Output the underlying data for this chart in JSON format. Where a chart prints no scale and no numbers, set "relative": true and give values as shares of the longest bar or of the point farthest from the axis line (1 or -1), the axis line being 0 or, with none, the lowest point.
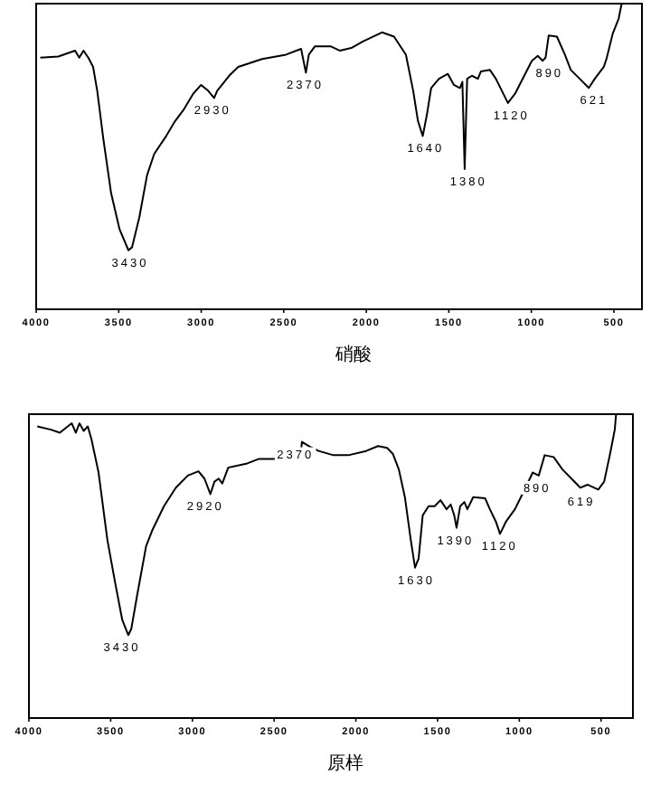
{
  "chart_data": [
    {
      "type": "line",
      "relative": true,
      "xlabel": "硝酸",
      "tick_labels": "x",
      "xlim": [
        4000,
        330
      ],
      "xticks": [
        4000,
        3500,
        3000,
        2500,
        2000,
        1500,
        1000,
        500
      ],
      "x": [
        3975,
        3866,
        3764,
        3739,
        3713,
        3684,
        3655,
        3630,
        3593,
        3546,
        3495,
        3441,
        3419,
        3375,
        3328,
        3285,
        3212,
        3158,
        3103,
        3049,
        3001,
        2958,
        2922,
        2903,
        2831,
        2776,
        2631,
        2486,
        2395,
        2366,
        2348,
        2312,
        2214,
        2159,
        2086,
        2021,
        1905,
        1832,
        1760,
        1716,
        1687,
        1658,
        1633,
        1607,
        1560,
        1506,
        1469,
        1433,
        1418,
        1404,
        1389,
        1360,
        1324,
        1306,
        1251,
        1215,
        1142,
        1099,
        1062,
        997,
        961,
        932,
        914,
        895,
        845,
        797,
        761,
        707,
        652,
        616,
        561,
        543,
        507,
        471,
        453
      ],
      "series": [
        {
          "color": "#000000",
          "values": [
            0.823,
            0.827,
            0.846,
            0.823,
            0.846,
            0.823,
            0.793,
            0.715,
            0.557,
            0.38,
            0.262,
            0.193,
            0.203,
            0.301,
            0.439,
            0.508,
            0.567,
            0.616,
            0.656,
            0.705,
            0.734,
            0.715,
            0.691,
            0.715,
            0.764,
            0.793,
            0.819,
            0.833,
            0.852,
            0.774,
            0.833,
            0.86,
            0.86,
            0.846,
            0.856,
            0.876,
            0.906,
            0.892,
            0.833,
            0.715,
            0.616,
            0.567,
            0.636,
            0.724,
            0.754,
            0.77,
            0.734,
            0.724,
            0.744,
            0.459,
            0.754,
            0.764,
            0.754,
            0.778,
            0.783,
            0.754,
            0.675,
            0.705,
            0.744,
            0.813,
            0.829,
            0.813,
            0.823,
            0.896,
            0.892,
            0.833,
            0.783,
            0.754,
            0.724,
            0.754,
            0.793,
            0.823,
            0.902,
            0.951,
            1.0
          ]
        }
      ],
      "annotations": [
        {
          "text": "3430",
          "x": 3430,
          "y": 0.193
        },
        {
          "text": "2930",
          "x": 2930,
          "y": 0.691
        },
        {
          "text": "2370",
          "x": 2370,
          "y": 0.774
        },
        {
          "text": "1640",
          "x": 1640,
          "y": 0.567
        },
        {
          "text": "1380",
          "x": 1380,
          "y": 0.459
        },
        {
          "text": "1120",
          "x": 1120,
          "y": 0.675
        },
        {
          "text": "890",
          "x": 890,
          "y": 0.813
        },
        {
          "text": "621",
          "x": 621,
          "y": 0.724
        }
      ]
    },
    {
      "type": "line",
      "relative": true,
      "xlabel": "原样",
      "tick_labels": "x",
      "xlim": [
        4000,
        305
      ],
      "xticks": [
        4000,
        3500,
        3000,
        2500,
        2000,
        1500,
        1000,
        500
      ],
      "x": [
        3949,
        3865,
        3811,
        3738,
        3713,
        3691,
        3665,
        3640,
        3618,
        3574,
        3520,
        3472,
        3429,
        3392,
        3374,
        3338,
        3283,
        3247,
        3174,
        3101,
        3028,
        2963,
        2926,
        2890,
        2865,
        2839,
        2817,
        2781,
        2664,
        2592,
        2483,
        2373,
        2337,
        2330,
        2282,
        2228,
        2137,
        2046,
        1937,
        1864,
        1809,
        1773,
        1737,
        1700,
        1664,
        1638,
        1616,
        1591,
        1555,
        1518,
        1482,
        1445,
        1420,
        1398,
        1384,
        1362,
        1336,
        1318,
        1282,
        1209,
        1180,
        1143,
        1118,
        1082,
        1027,
        972,
        918,
        881,
        845,
        790,
        736,
        681,
        627,
        583,
        517,
        481,
        445,
        416,
        408
      ],
      "series": [
        {
          "color": "#000000",
          "values": [
            0.96,
            0.949,
            0.939,
            0.97,
            0.939,
            0.97,
            0.945,
            0.96,
            0.919,
            0.808,
            0.586,
            0.444,
            0.323,
            0.273,
            0.293,
            0.404,
            0.566,
            0.616,
            0.697,
            0.758,
            0.798,
            0.812,
            0.788,
            0.737,
            0.778,
            0.788,
            0.772,
            0.824,
            0.838,
            0.853,
            0.853,
            0.869,
            0.869,
            0.909,
            0.893,
            0.879,
            0.865,
            0.865,
            0.879,
            0.895,
            0.889,
            0.869,
            0.818,
            0.727,
            0.586,
            0.495,
            0.525,
            0.667,
            0.697,
            0.697,
            0.717,
            0.687,
            0.703,
            0.667,
            0.626,
            0.697,
            0.711,
            0.687,
            0.727,
            0.723,
            0.687,
            0.646,
            0.606,
            0.646,
            0.687,
            0.747,
            0.808,
            0.798,
            0.865,
            0.859,
            0.818,
            0.788,
            0.758,
            0.768,
            0.752,
            0.778,
            0.869,
            0.949,
            1.0
          ]
        }
      ],
      "annotations": [
        {
          "text": "3430",
          "x": 3430,
          "y": 0.273
        },
        {
          "text": "2920",
          "x": 2920,
          "y": 0.737
        },
        {
          "text": "2370",
          "x": 2370,
          "y": 0.909
        },
        {
          "text": "1630",
          "x": 1630,
          "y": 0.495
        },
        {
          "text": "1390",
          "x": 1390,
          "y": 0.626
        },
        {
          "text": "1120",
          "x": 1120,
          "y": 0.606
        },
        {
          "text": "890",
          "x": 890,
          "y": 0.798
        },
        {
          "text": "619",
          "x": 619,
          "y": 0.752
        }
      ]
    }
  ]
}
